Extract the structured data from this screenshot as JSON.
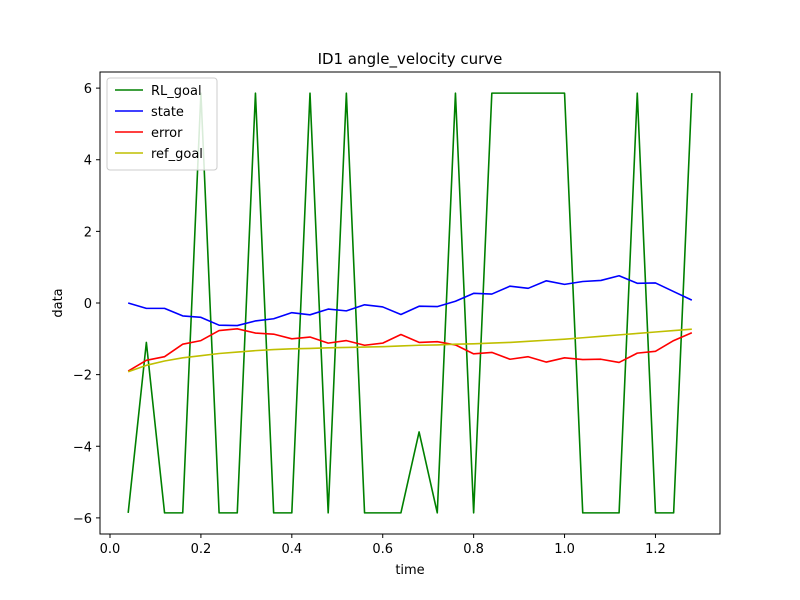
{
  "chart_data": {
    "type": "line",
    "title": "ID1 angle_velocity curve",
    "xlabel": "time",
    "ylabel": "data",
    "xlim": [
      -0.022,
      1.342
    ],
    "ylim": [
      -6.45,
      6.45
    ],
    "grid": false,
    "legend_position": "top-left",
    "x_ticks": [
      0.0,
      0.2,
      0.4,
      0.6,
      0.8,
      1.0,
      1.2
    ],
    "x_tick_labels": [
      "0.0",
      "0.2",
      "0.4",
      "0.6",
      "0.8",
      "1.0",
      "1.2"
    ],
    "y_ticks": [
      -6,
      -4,
      -2,
      0,
      2,
      4,
      6
    ],
    "y_tick_labels": [
      "−6",
      "−4",
      "−2",
      "0",
      "2",
      "4",
      "6"
    ],
    "x": [
      0.04,
      0.08,
      0.12,
      0.16,
      0.2,
      0.24,
      0.28,
      0.32,
      0.36,
      0.4,
      0.44,
      0.48,
      0.52,
      0.56,
      0.6,
      0.64,
      0.68,
      0.72,
      0.76,
      0.8,
      0.84,
      0.88,
      0.92,
      0.96,
      1.0,
      1.04,
      1.08,
      1.12,
      1.16,
      1.2,
      1.24,
      1.28
    ],
    "series": [
      {
        "name": "RL_goal",
        "color": "#008000",
        "values": [
          -5.86,
          -1.1,
          -5.86,
          -5.86,
          5.86,
          -5.86,
          -5.86,
          5.86,
          -5.86,
          -5.86,
          5.86,
          -5.86,
          5.86,
          -5.86,
          -5.86,
          -5.86,
          -3.6,
          -5.86,
          5.86,
          -5.86,
          5.86,
          5.86,
          5.86,
          5.86,
          5.86,
          -5.86,
          -5.86,
          -5.86,
          5.86,
          -5.86,
          -5.86,
          5.86
        ]
      },
      {
        "name": "state",
        "color": "#0000ff",
        "values": [
          0.0,
          -0.15,
          -0.15,
          -0.36,
          -0.4,
          -0.62,
          -0.63,
          -0.5,
          -0.44,
          -0.27,
          -0.33,
          -0.17,
          -0.22,
          -0.05,
          -0.11,
          -0.32,
          -0.09,
          -0.1,
          0.05,
          0.27,
          0.25,
          0.47,
          0.41,
          0.62,
          0.52,
          0.6,
          0.63,
          0.76,
          0.55,
          0.56,
          0.32,
          0.08
        ]
      },
      {
        "name": "error",
        "color": "#ff0000",
        "values": [
          -1.9,
          -1.6,
          -1.5,
          -1.15,
          -1.05,
          -0.77,
          -0.72,
          -0.84,
          -0.87,
          -1.0,
          -0.95,
          -1.12,
          -1.05,
          -1.18,
          -1.12,
          -0.88,
          -1.1,
          -1.08,
          -1.17,
          -1.42,
          -1.38,
          -1.57,
          -1.5,
          -1.65,
          -1.53,
          -1.58,
          -1.57,
          -1.66,
          -1.4,
          -1.35,
          -1.05,
          -0.83
        ]
      },
      {
        "name": "ref_goal",
        "color": "#bfbf00",
        "values": [
          -1.92,
          -1.74,
          -1.62,
          -1.53,
          -1.47,
          -1.41,
          -1.37,
          -1.33,
          -1.3,
          -1.28,
          -1.27,
          -1.25,
          -1.24,
          -1.23,
          -1.22,
          -1.2,
          -1.18,
          -1.17,
          -1.15,
          -1.14,
          -1.12,
          -1.1,
          -1.07,
          -1.04,
          -1.01,
          -0.97,
          -0.93,
          -0.89,
          -0.85,
          -0.81,
          -0.77,
          -0.73
        ]
      }
    ]
  }
}
